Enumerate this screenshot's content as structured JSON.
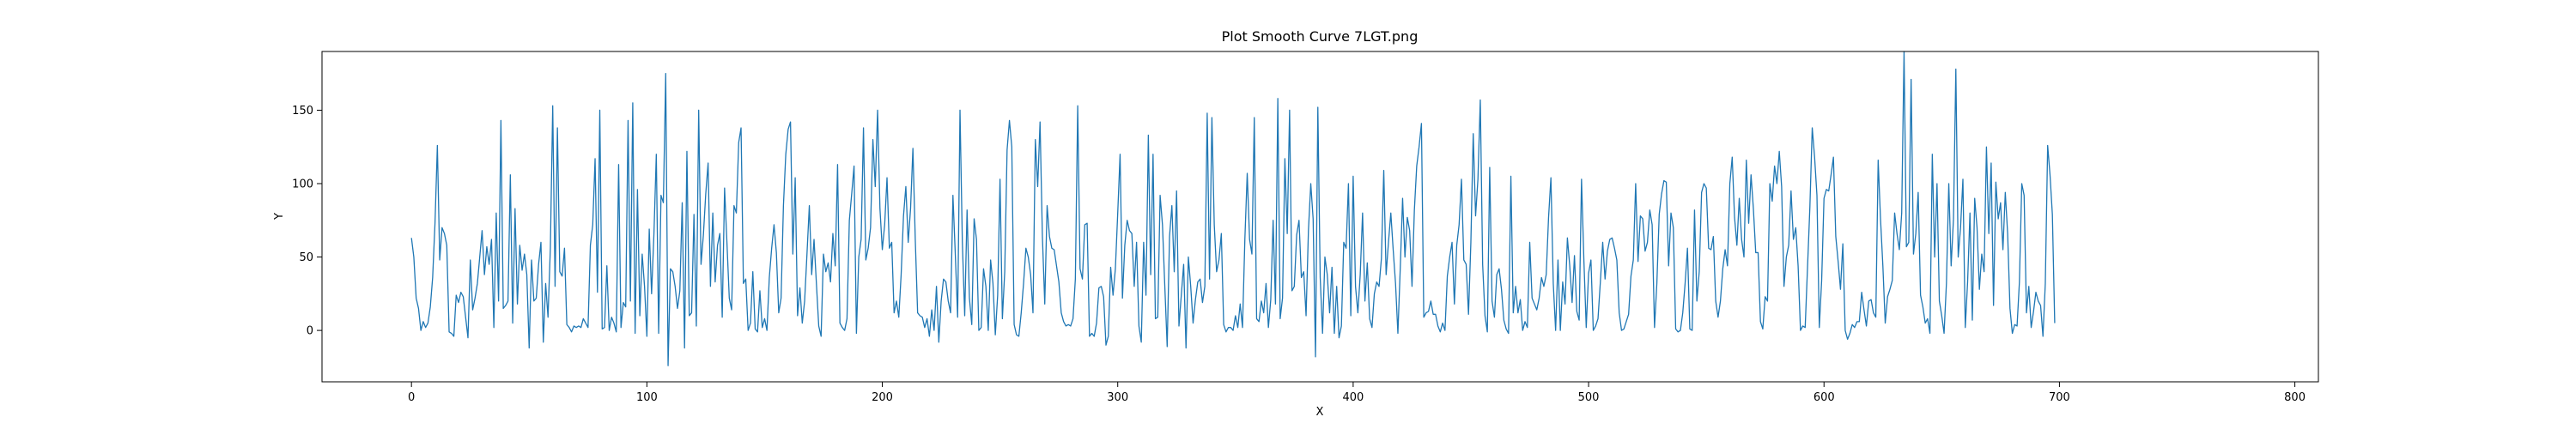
{
  "chart_data": {
    "type": "line",
    "title": "Plot Smooth Curve 7LGT.png",
    "xlabel": "X",
    "ylabel": "Y",
    "xlim": [
      -38,
      810
    ],
    "ylim": [
      -35,
      190
    ],
    "xticks": [
      0,
      100,
      200,
      300,
      400,
      500,
      600,
      700,
      800
    ],
    "yticks": [
      0,
      50,
      100,
      150
    ],
    "grid": false,
    "legend": "none",
    "series": [
      {
        "color": "#1f77b4",
        "x_start": 0,
        "x_step": 1,
        "values": [
          63,
          50,
          22,
          15,
          0,
          6,
          2,
          5,
          16,
          36,
          73,
          126,
          48,
          70,
          66,
          58,
          -1,
          -2,
          -4,
          24,
          19,
          26,
          23,
          9,
          -5,
          48,
          14,
          22,
          32,
          50,
          68,
          38,
          57,
          45,
          62,
          2,
          80,
          20,
          143,
          15,
          17,
          20,
          106,
          5,
          83,
          18,
          58,
          41,
          52,
          38,
          -12,
          48,
          20,
          22,
          45,
          60,
          -8,
          32,
          9,
          56,
          153,
          30,
          138,
          40,
          37,
          56,
          4,
          2,
          -1,
          3,
          2,
          3,
          2,
          8,
          5,
          2,
          58,
          72,
          117,
          26,
          150,
          1,
          2,
          44,
          0,
          9,
          5,
          -1,
          113,
          2,
          19,
          16,
          143,
          20,
          155,
          -2,
          96,
          10,
          52,
          30,
          -4,
          69,
          25,
          66,
          120,
          -2,
          92,
          87,
          175,
          -24,
          42,
          40,
          30,
          15,
          27,
          87,
          -12,
          122,
          10,
          12,
          79,
          3,
          150,
          45,
          65,
          93,
          114,
          30,
          80,
          33,
          58,
          66,
          9,
          97,
          60,
          22,
          14,
          85,
          80,
          128,
          138,
          32,
          35,
          0,
          5,
          40,
          1,
          -1,
          27,
          2,
          8,
          0,
          36,
          56,
          72,
          53,
          12,
          22,
          85,
          120,
          137,
          142,
          52,
          104,
          10,
          29,
          5,
          20,
          52,
          85,
          38,
          62,
          32,
          3,
          -4,
          52,
          40,
          46,
          33,
          66,
          44,
          113,
          5,
          2,
          0,
          8,
          75,
          93,
          112,
          -2,
          50,
          62,
          138,
          48,
          56,
          70,
          130,
          98,
          150,
          83,
          55,
          72,
          104,
          56,
          60,
          12,
          20,
          9,
          38,
          78,
          98,
          60,
          83,
          124,
          62,
          12,
          10,
          9,
          2,
          8,
          -4,
          14,
          0,
          30,
          -8,
          20,
          35,
          33,
          20,
          12,
          92,
          52,
          9,
          150,
          60,
          10,
          82,
          22,
          4,
          76,
          62,
          0,
          2,
          42,
          30,
          0,
          48,
          32,
          -3,
          24,
          103,
          8,
          40,
          123,
          143,
          125,
          4,
          -3,
          -4,
          12,
          32,
          56,
          50,
          38,
          12,
          130,
          98,
          142,
          64,
          18,
          85,
          64,
          56,
          55,
          44,
          33,
          12,
          6,
          3,
          4,
          3,
          8,
          35,
          153,
          42,
          35,
          72,
          73,
          -4,
          -2,
          -4,
          5,
          29,
          30,
          23,
          -10,
          -4,
          43,
          24,
          42,
          80,
          120,
          22,
          58,
          75,
          68,
          66,
          30,
          60,
          3,
          -8,
          60,
          24,
          133,
          38,
          120,
          8,
          9,
          92,
          72,
          30,
          -11,
          64,
          85,
          40,
          95,
          3,
          24,
          45,
          -12,
          50,
          30,
          5,
          21,
          33,
          35,
          19,
          30,
          148,
          35,
          145,
          72,
          40,
          48,
          66,
          4,
          -1,
          2,
          2,
          0,
          10,
          2,
          18,
          2,
          62,
          107,
          62,
          52,
          145,
          8,
          6,
          20,
          12,
          32,
          2,
          21,
          75,
          18,
          158,
          8,
          22,
          117,
          66,
          150,
          27,
          30,
          65,
          75,
          36,
          40,
          10,
          68,
          100,
          76,
          -18,
          152,
          36,
          -2,
          50,
          38,
          12,
          43,
          -2,
          30,
          -5,
          3,
          60,
          56,
          100,
          10,
          105,
          30,
          12,
          38,
          80,
          20,
          46,
          8,
          2,
          25,
          33,
          30,
          49,
          109,
          38,
          60,
          80,
          55,
          32,
          -2,
          42,
          90,
          50,
          77,
          68,
          30,
          82,
          112,
          125,
          141,
          9,
          12,
          13,
          20,
          11,
          11,
          3,
          -1,
          5,
          0,
          37,
          50,
          60,
          18,
          58,
          72,
          103,
          48,
          45,
          11,
          60,
          134,
          78,
          103,
          157,
          45,
          10,
          -1,
          111,
          20,
          9,
          38,
          42,
          28,
          7,
          1,
          -2,
          105,
          12,
          30,
          12,
          21,
          0,
          6,
          2,
          60,
          22,
          18,
          14,
          22,
          36,
          30,
          38,
          77,
          104,
          32,
          0,
          48,
          0,
          33,
          18,
          63,
          44,
          19,
          51,
          13,
          7,
          103,
          48,
          2,
          39,
          48,
          0,
          3,
          8,
          33,
          60,
          35,
          54,
          62,
          63,
          56,
          48,
          12,
          0,
          1,
          6,
          11,
          37,
          48,
          100,
          47,
          78,
          76,
          54,
          60,
          82,
          72,
          2,
          32,
          79,
          93,
          102,
          101,
          44,
          80,
          70,
          1,
          -1,
          0,
          12,
          32,
          56,
          1,
          0,
          82,
          20,
          40,
          94,
          100,
          97,
          56,
          55,
          64,
          20,
          9,
          20,
          42,
          55,
          44,
          100,
          118,
          77,
          58,
          90,
          62,
          50,
          116,
          73,
          106,
          83,
          53,
          53,
          6,
          1,
          23,
          20,
          100,
          88,
          112,
          100,
          122,
          98,
          30,
          50,
          58,
          95,
          62,
          70,
          44,
          0,
          3,
          2,
          43,
          84,
          138,
          118,
          92,
          2,
          34,
          90,
          96,
          95,
          106,
          118,
          64,
          47,
          28,
          59,
          0,
          -6,
          -2,
          4,
          2,
          6,
          6,
          26,
          14,
          3,
          20,
          21,
          12,
          9,
          116,
          76,
          44,
          5,
          23,
          28,
          34,
          80,
          66,
          55,
          80,
          190,
          57,
          60,
          171,
          52,
          66,
          94,
          24,
          16,
          5,
          8,
          -2,
          120,
          50,
          100,
          20,
          10,
          -2,
          32,
          100,
          44,
          76,
          178,
          50,
          70,
          103,
          2,
          33,
          80,
          7,
          90,
          70,
          28,
          52,
          40,
          125,
          66,
          114,
          17,
          101,
          76,
          87,
          55,
          94,
          66,
          15,
          -2,
          4,
          3,
          33,
          100,
          92,
          12,
          30,
          2,
          13,
          26,
          20,
          17,
          -4,
          32,
          126,
          106,
          79,
          5
        ]
      }
    ]
  }
}
